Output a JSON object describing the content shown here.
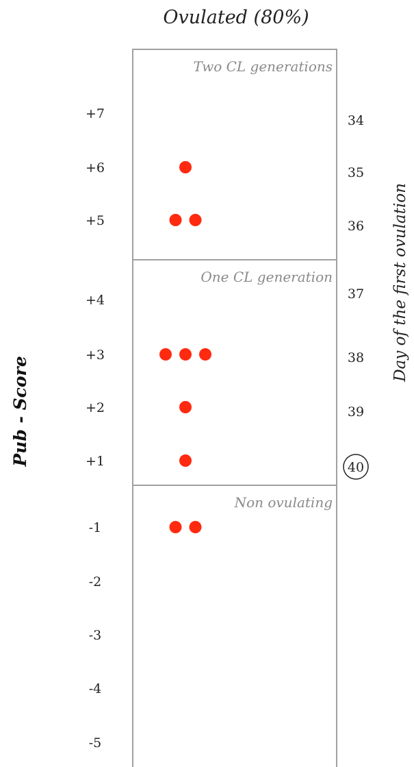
{
  "chart_data": {
    "type": "scatter",
    "title": "Ovulated (80%)",
    "ylabel": "Pub - Score",
    "y2label": "Day of the first ovulation",
    "y_ticks": [
      "+7",
      "+6",
      "+5",
      "+4",
      "+3",
      "+2",
      "+1",
      "-1",
      "-2",
      "-3",
      "-4",
      "-5"
    ],
    "y_tick_values": [
      7,
      6,
      5,
      4,
      3,
      2,
      1,
      -1,
      -2,
      -3,
      -4,
      -5
    ],
    "day_ticks": [
      "34",
      "35",
      "36",
      "37",
      "38",
      "39",
      "40"
    ],
    "day_tick_values": [
      34,
      35,
      36,
      37,
      38,
      39,
      40
    ],
    "highlighted_day": "40",
    "panels": [
      {
        "label": "Two CL generations",
        "score_top": 8,
        "score_bottom": 4.5
      },
      {
        "label": "One CL generation",
        "score_top": 4.5,
        "score_bottom": 0.5
      },
      {
        "label": "Non ovulating",
        "score_top": 0.5,
        "score_bottom": -5.5
      }
    ],
    "points": [
      {
        "score": 6,
        "count": 1
      },
      {
        "score": 5,
        "count": 2
      },
      {
        "score": 3,
        "count": 3
      },
      {
        "score": 2,
        "count": 1
      },
      {
        "score": 1,
        "count": 1
      },
      {
        "score": -1,
        "count": 2
      }
    ],
    "dot_color": "#ff2a10",
    "grid": false
  }
}
